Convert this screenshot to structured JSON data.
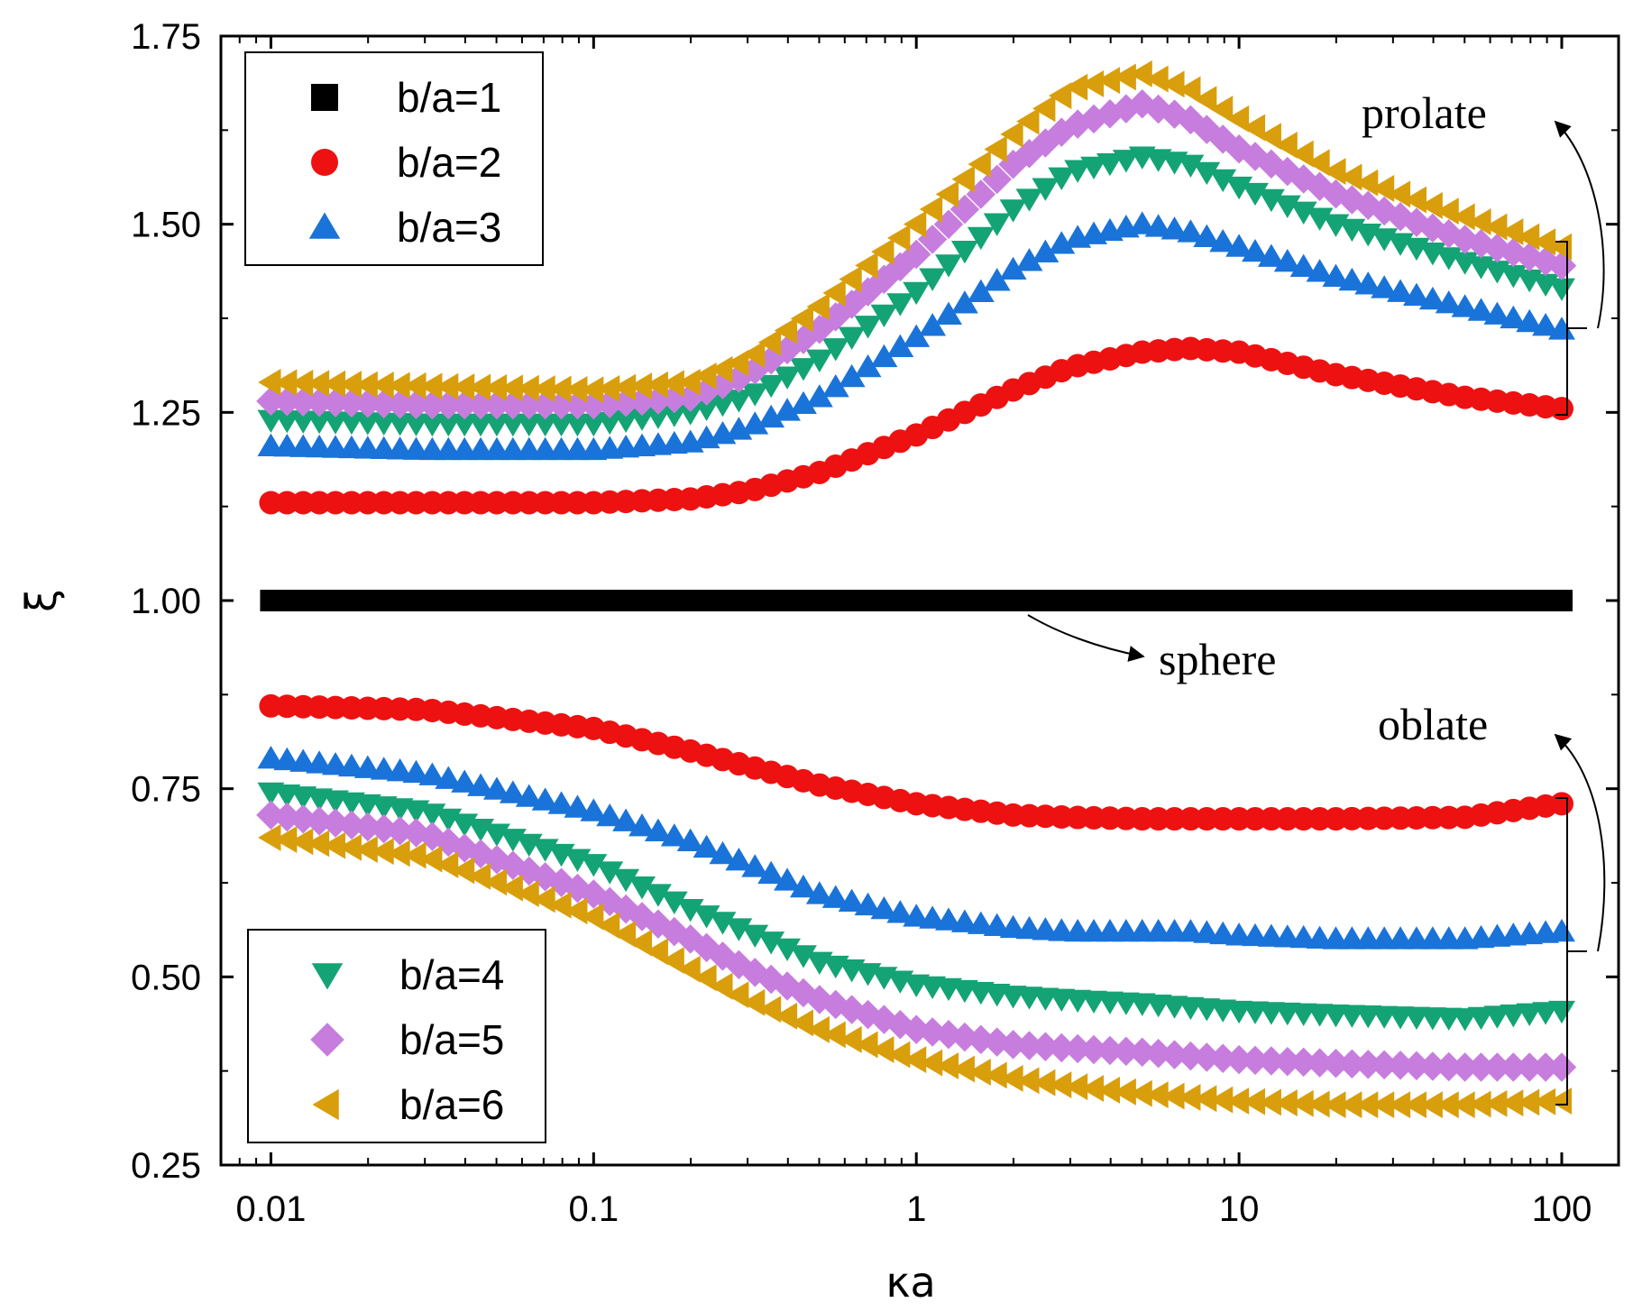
{
  "chart_data": {
    "type": "scatter",
    "title": "",
    "xlabel": "κa",
    "ylabel": "ξ",
    "xscale": "log",
    "xlim": [
      0.007,
      150
    ],
    "ylim": [
      0.25,
      1.75
    ],
    "xticks": [
      "0.01",
      "0.1",
      "1",
      "10",
      "100"
    ],
    "yticks": [
      "0.25",
      "0.50",
      "0.75",
      "1.00",
      "1.25",
      "1.50",
      "1.75"
    ],
    "grid": false,
    "colors": {
      "b1": "#000000",
      "b2": "#ee1111",
      "b3": "#1a73d9",
      "b4": "#14a374",
      "b5": "#c77dde",
      "b6": "#d99e0b"
    },
    "legends": [
      {
        "placement": "top-left",
        "entries": [
          {
            "label": "b/a=1",
            "marker": "square",
            "color": "#000000"
          },
          {
            "label": "b/a=2",
            "marker": "circle",
            "color": "#ee1111"
          },
          {
            "label": "b/a=3",
            "marker": "triangle-up",
            "color": "#1a73d9"
          }
        ]
      },
      {
        "placement": "bottom-left",
        "entries": [
          {
            "label": "b/a=4",
            "marker": "triangle-down",
            "color": "#14a374"
          },
          {
            "label": "b/a=5",
            "marker": "diamond",
            "color": "#c77dde"
          },
          {
            "label": "b/a=6",
            "marker": "triangle-left",
            "color": "#d99e0b"
          }
        ]
      }
    ],
    "annotations": [
      "prolate",
      "sphere",
      "oblate"
    ],
    "series": [
      {
        "group": "sphere",
        "name": "b/a=1",
        "marker": "square",
        "color": "#000000",
        "x": [
          0.01,
          0.1,
          1,
          10,
          100
        ],
        "y": [
          1.0,
          1.0,
          1.0,
          1.0,
          1.0
        ]
      },
      {
        "group": "prolate",
        "name": "b/a=2",
        "marker": "circle",
        "color": "#ee1111",
        "x": [
          0.01,
          0.03,
          0.1,
          0.2,
          0.3,
          0.5,
          1,
          2,
          3,
          5,
          7,
          10,
          20,
          50,
          100
        ],
        "y": [
          1.13,
          1.13,
          1.13,
          1.135,
          1.145,
          1.17,
          1.22,
          1.28,
          1.31,
          1.33,
          1.335,
          1.33,
          1.3,
          1.27,
          1.255
        ]
      },
      {
        "group": "prolate",
        "name": "b/a=3",
        "marker": "triangle-up",
        "color": "#1a73d9",
        "x": [
          0.01,
          0.03,
          0.1,
          0.2,
          0.3,
          0.5,
          1,
          2,
          3,
          5,
          7,
          10,
          20,
          50,
          100
        ],
        "y": [
          1.205,
          1.2,
          1.2,
          1.21,
          1.23,
          1.27,
          1.35,
          1.44,
          1.48,
          1.5,
          1.49,
          1.47,
          1.43,
          1.39,
          1.36
        ]
      },
      {
        "group": "prolate",
        "name": "b/a=4",
        "marker": "triangle-down",
        "color": "#14a374",
        "x": [
          0.01,
          0.03,
          0.1,
          0.2,
          0.3,
          0.5,
          1,
          2,
          3,
          5,
          7,
          10,
          20,
          50,
          100
        ],
        "y": [
          1.24,
          1.235,
          1.235,
          1.25,
          1.27,
          1.32,
          1.41,
          1.52,
          1.57,
          1.59,
          1.58,
          1.55,
          1.5,
          1.45,
          1.415
        ]
      },
      {
        "group": "prolate",
        "name": "b/a=5",
        "marker": "diamond",
        "color": "#c77dde",
        "x": [
          0.01,
          0.03,
          0.1,
          0.2,
          0.3,
          0.5,
          1,
          2,
          3,
          5,
          7,
          10,
          20,
          50,
          100
        ],
        "y": [
          1.265,
          1.26,
          1.26,
          1.27,
          1.3,
          1.36,
          1.46,
          1.58,
          1.63,
          1.66,
          1.64,
          1.6,
          1.54,
          1.48,
          1.445
        ]
      },
      {
        "group": "prolate",
        "name": "b/a=6",
        "marker": "triangle-left",
        "color": "#d99e0b",
        "x": [
          0.01,
          0.03,
          0.1,
          0.2,
          0.3,
          0.5,
          1,
          2,
          3,
          5,
          7,
          10,
          20,
          50,
          100
        ],
        "y": [
          1.29,
          1.285,
          1.28,
          1.29,
          1.32,
          1.39,
          1.5,
          1.62,
          1.68,
          1.7,
          1.68,
          1.64,
          1.57,
          1.51,
          1.47
        ]
      },
      {
        "group": "oblate",
        "name": "b/a=2",
        "marker": "circle",
        "color": "#ee1111",
        "x": [
          0.01,
          0.03,
          0.1,
          0.2,
          0.3,
          0.5,
          1,
          2,
          3,
          5,
          7,
          10,
          20,
          50,
          100
        ],
        "y": [
          0.86,
          0.855,
          0.83,
          0.8,
          0.78,
          0.755,
          0.73,
          0.715,
          0.712,
          0.71,
          0.71,
          0.71,
          0.71,
          0.712,
          0.73
        ]
      },
      {
        "group": "oblate",
        "name": "b/a=3",
        "marker": "triangle-up",
        "color": "#1a73d9",
        "x": [
          0.01,
          0.03,
          0.1,
          0.2,
          0.3,
          0.5,
          1,
          2,
          3,
          5,
          7,
          10,
          20,
          50,
          100
        ],
        "y": [
          0.79,
          0.77,
          0.72,
          0.68,
          0.65,
          0.61,
          0.58,
          0.565,
          0.56,
          0.56,
          0.56,
          0.555,
          0.55,
          0.55,
          0.56
        ]
      },
      {
        "group": "oblate",
        "name": "b/a=4",
        "marker": "triangle-down",
        "color": "#14a374",
        "x": [
          0.01,
          0.03,
          0.1,
          0.2,
          0.3,
          0.5,
          1,
          2,
          3,
          5,
          7,
          10,
          20,
          50,
          100
        ],
        "y": [
          0.745,
          0.72,
          0.65,
          0.59,
          0.56,
          0.52,
          0.49,
          0.475,
          0.47,
          0.465,
          0.46,
          0.455,
          0.45,
          0.445,
          0.455
        ]
      },
      {
        "group": "oblate",
        "name": "b/a=5",
        "marker": "diamond",
        "color": "#c77dde",
        "x": [
          0.01,
          0.03,
          0.1,
          0.2,
          0.3,
          0.5,
          1,
          2,
          3,
          5,
          7,
          10,
          20,
          50,
          100
        ],
        "y": [
          0.715,
          0.69,
          0.61,
          0.55,
          0.51,
          0.47,
          0.43,
          0.41,
          0.405,
          0.4,
          0.395,
          0.39,
          0.385,
          0.38,
          0.38
        ]
      },
      {
        "group": "oblate",
        "name": "b/a=6",
        "marker": "triangle-left",
        "color": "#d99e0b",
        "x": [
          0.01,
          0.03,
          0.1,
          0.2,
          0.3,
          0.5,
          1,
          2,
          3,
          5,
          7,
          10,
          20,
          50,
          100
        ],
        "y": [
          0.685,
          0.66,
          0.58,
          0.51,
          0.47,
          0.43,
          0.39,
          0.365,
          0.355,
          0.345,
          0.34,
          0.335,
          0.33,
          0.33,
          0.335
        ]
      }
    ]
  }
}
